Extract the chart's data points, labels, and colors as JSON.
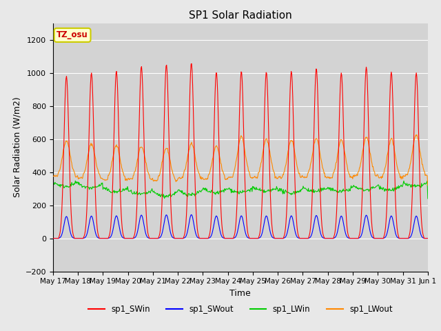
{
  "title": "SP1 Solar Radiation",
  "xlabel": "Time",
  "ylabel": "Solar Radiation (W/m2)",
  "ylim": [
    -200,
    1300
  ],
  "yticks": [
    -200,
    0,
    200,
    400,
    600,
    800,
    1000,
    1200
  ],
  "n_days": 15,
  "xtick_labels": [
    "May 17",
    "May 18",
    "May 19",
    "May 20",
    "May 21",
    "May 22",
    "May 23",
    "May 24",
    "May 25",
    "May 26",
    "May 27",
    "May 28",
    "May 29",
    "May 30",
    "May 31",
    "Jun 1"
  ],
  "colors": {
    "sp1_SWin": "#FF0000",
    "sp1_SWout": "#0000FF",
    "sp1_LWin": "#00CC00",
    "sp1_LWout": "#FF8800"
  },
  "tz_label": "TZ_osu",
  "background_color": "#E8E8E8",
  "plot_bg_color": "#D3D3D3",
  "grid_color": "#FFFFFF",
  "sw_peaks": [
    980,
    1000,
    1010,
    1040,
    1050,
    1060,
    1005,
    1010,
    1005,
    1010,
    1025,
    1000,
    1035,
    1005,
    1000
  ],
  "lw_peaks": [
    590,
    570,
    560,
    555,
    545,
    575,
    555,
    615,
    600,
    595,
    605,
    595,
    610,
    600,
    625
  ],
  "lw_base": [
    375,
    365,
    355,
    360,
    350,
    365,
    358,
    370,
    368,
    368,
    372,
    368,
    378,
    368,
    380
  ],
  "lwin_base": [
    340,
    330,
    305,
    290,
    280,
    290,
    300,
    302,
    308,
    298,
    308,
    308,
    318,
    318,
    338
  ]
}
